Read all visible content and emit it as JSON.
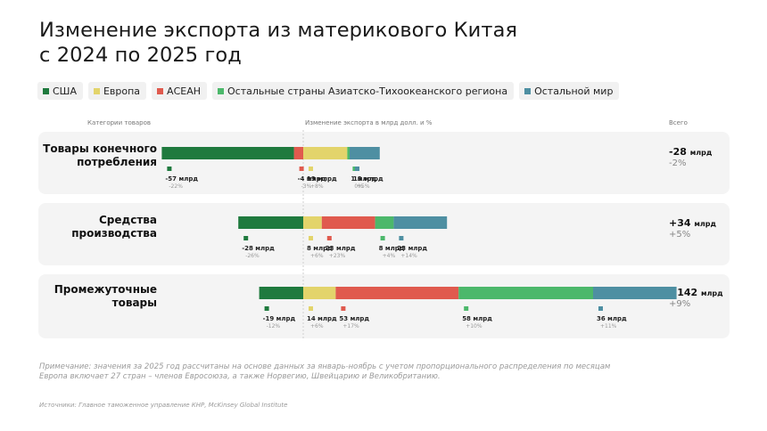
{
  "title_lines": [
    "Изменение экспорта из материкового Китая",
    "с 2024 по 2025 год"
  ],
  "legend": [
    {
      "label": "США",
      "color": "#1f7a3e"
    },
    {
      "label": "Европа",
      "color": "#e3d46b"
    },
    {
      "label": "АСЕАН",
      "color": "#e05a4e"
    },
    {
      "label": "Остальные страны Азиатско-Тихоокеанского региона",
      "color": "#4cb86b"
    },
    {
      "label": "Остальной мир",
      "color": "#4e8fa2"
    }
  ],
  "headers": {
    "categories": "Категории товаров",
    "change": "Изменение экспорта в млрд долл. и %",
    "total": "Всего"
  },
  "chart_data": {
    "type": "bar",
    "orientation": "horizontal-stacked-diverging",
    "xlabel": "Изменение экспорта в млрд долл. и %",
    "unit": "млрд",
    "series_names": [
      "США",
      "Европа",
      "АСЕАН",
      "Остальные страны Азиатско-Тихоокеанского региона",
      "Остальной мир"
    ],
    "categories": [
      {
        "label_lines": [
          "Товары конечного",
          "потребления"
        ],
        "total": "-28",
        "total_unit": "млрд",
        "total_pct": "-2%",
        "segments": [
          {
            "series": "АСЕАН",
            "value": -4,
            "pct": "-3%"
          },
          {
            "series": "США",
            "value": -57,
            "pct": "-22%"
          },
          {
            "series": "Европа",
            "value": 19,
            "pct": "+8%"
          },
          {
            "series": "Остальные страны Азиатско-Тихоокеанского региона",
            "value": 1,
            "pct": "0%"
          },
          {
            "series": "Остальной мир",
            "value": 13,
            "pct": "+5%"
          }
        ]
      },
      {
        "label_lines": [
          "Средства",
          "производства"
        ],
        "total": "+34",
        "total_unit": "млрд",
        "total_pct": "+5%",
        "segments": [
          {
            "series": "США",
            "value": -28,
            "pct": "-26%"
          },
          {
            "series": "Европа",
            "value": 8,
            "pct": "+6%"
          },
          {
            "series": "АСЕАН",
            "value": 23,
            "pct": "+23%"
          },
          {
            "series": "Остальные страны Азиатско-Тихоокеанского региона",
            "value": 8,
            "pct": "+4%"
          },
          {
            "series": "Остальной мир",
            "value": 23,
            "pct": "+14%"
          }
        ]
      },
      {
        "label_lines": [
          "Промежуточные",
          "товары"
        ],
        "total": "+142",
        "total_unit": "млрд",
        "total_pct": "+9%",
        "segments": [
          {
            "series": "США",
            "value": -19,
            "pct": "-12%"
          },
          {
            "series": "Европа",
            "value": 14,
            "pct": "+6%"
          },
          {
            "series": "АСЕАН",
            "value": 53,
            "pct": "+17%"
          },
          {
            "series": "Остальные страны Азиатско-Тихоокеанского региона",
            "value": 58,
            "pct": "+10%"
          },
          {
            "series": "Остальной мир",
            "value": 36,
            "pct": "+11%"
          }
        ]
      }
    ]
  },
  "note_lines": [
    "Примечание: значения за 2025 год рассчитаны на основе данных за январь-ноябрь с учетом пропорционального распределения по месяцам",
    "Европа включает 27 стран – членов Евросоюза, а также Норвегию, Швейцарию и Великобританию."
  ],
  "source": "Источники: Главное таможенное управление КНР, McKinsey Global Institute"
}
